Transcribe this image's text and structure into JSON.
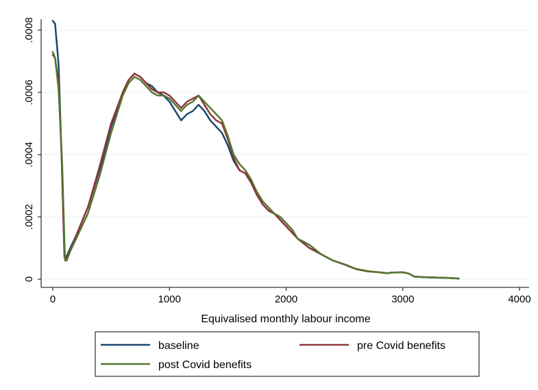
{
  "chart_data": {
    "type": "line",
    "title": "",
    "xlabel": "Equivalised monthly labour income",
    "ylabel": "",
    "xlim": [
      0,
      4000
    ],
    "ylim": [
      0,
      0.0008
    ],
    "xticks": [
      0,
      1000,
      2000,
      3000,
      4000
    ],
    "xtick_labels": [
      "0",
      "1000",
      "2000",
      "3000",
      "4000"
    ],
    "yticks": [
      0,
      0.0002,
      0.0004,
      0.0006,
      0.0008
    ],
    "ytick_labels": [
      "0",
      ".0002",
      ".0004",
      ".0006",
      ".0008"
    ],
    "grid": "horizontal",
    "legend_position": "bottom",
    "series": [
      {
        "name": "baseline",
        "color": "#1a476f",
        "points": [
          [
            0,
            0.00083
          ],
          [
            20,
            0.00082
          ],
          [
            50,
            0.00069
          ],
          [
            75,
            0.0004
          ],
          [
            100,
            8e-05
          ],
          [
            115,
            7e-05
          ],
          [
            150,
            0.0001
          ],
          [
            200,
            0.00014
          ],
          [
            300,
            0.00023
          ],
          [
            400,
            0.00035
          ],
          [
            500,
            0.00049
          ],
          [
            600,
            0.0006
          ],
          [
            650,
            0.00064
          ],
          [
            700,
            0.00066
          ],
          [
            750,
            0.00065
          ],
          [
            800,
            0.00063
          ],
          [
            850,
            0.00062
          ],
          [
            900,
            0.0006
          ],
          [
            950,
            0.00059
          ],
          [
            1000,
            0.00057
          ],
          [
            1050,
            0.00054
          ],
          [
            1100,
            0.00051
          ],
          [
            1150,
            0.00053
          ],
          [
            1200,
            0.00054
          ],
          [
            1250,
            0.00056
          ],
          [
            1300,
            0.00054
          ],
          [
            1350,
            0.00051
          ],
          [
            1400,
            0.00049
          ],
          [
            1450,
            0.00047
          ],
          [
            1500,
            0.00043
          ],
          [
            1550,
            0.00038
          ],
          [
            1600,
            0.00035
          ],
          [
            1650,
            0.00034
          ],
          [
            1700,
            0.00031
          ],
          [
            1750,
            0.00027
          ],
          [
            1800,
            0.00024
          ],
          [
            1850,
            0.00022
          ],
          [
            1900,
            0.00021
          ],
          [
            1950,
            0.00019
          ],
          [
            2000,
            0.00017
          ],
          [
            2050,
            0.00015
          ],
          [
            2100,
            0.00013
          ],
          [
            2200,
            0.0001
          ],
          [
            2300,
            8e-05
          ],
          [
            2400,
            6e-05
          ],
          [
            2500,
            4.7e-05
          ],
          [
            2600,
            3.2e-05
          ],
          [
            2700,
            2.5e-05
          ],
          [
            2800,
            2.2e-05
          ],
          [
            2870,
            1.9e-05
          ],
          [
            2900,
            2.1e-05
          ],
          [
            3000,
            2.2e-05
          ],
          [
            3050,
            1.8e-05
          ],
          [
            3100,
            8e-06
          ],
          [
            3200,
            6e-06
          ],
          [
            3300,
            5e-06
          ],
          [
            3400,
            4e-06
          ],
          [
            3480,
            2e-06
          ]
        ]
      },
      {
        "name": "pre Covid benefits",
        "color": "#90353b",
        "points": [
          [
            0,
            0.00072
          ],
          [
            20,
            0.00071
          ],
          [
            50,
            0.00063
          ],
          [
            75,
            0.0004
          ],
          [
            100,
            7e-05
          ],
          [
            115,
            6e-05
          ],
          [
            150,
            9e-05
          ],
          [
            200,
            0.00014
          ],
          [
            300,
            0.00023
          ],
          [
            400,
            0.00036
          ],
          [
            500,
            0.0005
          ],
          [
            600,
            0.0006
          ],
          [
            650,
            0.00064
          ],
          [
            700,
            0.00066
          ],
          [
            750,
            0.00065
          ],
          [
            800,
            0.00063
          ],
          [
            850,
            0.00061
          ],
          [
            900,
            0.0006
          ],
          [
            950,
            0.0006
          ],
          [
            1000,
            0.00059
          ],
          [
            1050,
            0.00057
          ],
          [
            1100,
            0.00055
          ],
          [
            1150,
            0.00057
          ],
          [
            1200,
            0.00058
          ],
          [
            1250,
            0.00059
          ],
          [
            1300,
            0.00056
          ],
          [
            1350,
            0.00053
          ],
          [
            1400,
            0.00051
          ],
          [
            1450,
            0.0005
          ],
          [
            1500,
            0.00045
          ],
          [
            1550,
            0.00039
          ],
          [
            1600,
            0.00035
          ],
          [
            1650,
            0.00034
          ],
          [
            1700,
            0.00031
          ],
          [
            1750,
            0.00027
          ],
          [
            1800,
            0.00024
          ],
          [
            1850,
            0.00022
          ],
          [
            1900,
            0.00021
          ],
          [
            1950,
            0.00019
          ],
          [
            2000,
            0.00017
          ],
          [
            2050,
            0.00015
          ],
          [
            2100,
            0.00013
          ],
          [
            2200,
            0.0001
          ],
          [
            2300,
            8e-05
          ],
          [
            2400,
            6e-05
          ],
          [
            2500,
            4.7e-05
          ],
          [
            2600,
            3.2e-05
          ],
          [
            2700,
            2.5e-05
          ],
          [
            2800,
            2.2e-05
          ],
          [
            2870,
            1.9e-05
          ],
          [
            2900,
            2.1e-05
          ],
          [
            3000,
            2.2e-05
          ],
          [
            3050,
            1.8e-05
          ],
          [
            3100,
            8e-06
          ],
          [
            3200,
            6e-06
          ],
          [
            3300,
            5e-06
          ],
          [
            3400,
            4e-06
          ],
          [
            3480,
            2e-06
          ]
        ]
      },
      {
        "name": "post Covid benefits",
        "color": "#55752f",
        "points": [
          [
            0,
            0.00073
          ],
          [
            20,
            0.00071
          ],
          [
            50,
            0.00061
          ],
          [
            80,
            0.00038
          ],
          [
            105,
            6e-05
          ],
          [
            120,
            6e-05
          ],
          [
            150,
            9e-05
          ],
          [
            200,
            0.00013
          ],
          [
            300,
            0.00021
          ],
          [
            400,
            0.00033
          ],
          [
            500,
            0.00047
          ],
          [
            600,
            0.00059
          ],
          [
            650,
            0.00063
          ],
          [
            700,
            0.00065
          ],
          [
            750,
            0.00064
          ],
          [
            800,
            0.00062
          ],
          [
            850,
            0.0006
          ],
          [
            900,
            0.00059
          ],
          [
            950,
            0.00059
          ],
          [
            1000,
            0.00058
          ],
          [
            1050,
            0.00056
          ],
          [
            1100,
            0.00054
          ],
          [
            1150,
            0.00056
          ],
          [
            1200,
            0.00057
          ],
          [
            1250,
            0.00059
          ],
          [
            1300,
            0.00057
          ],
          [
            1350,
            0.00055
          ],
          [
            1400,
            0.00053
          ],
          [
            1450,
            0.00051
          ],
          [
            1500,
            0.00046
          ],
          [
            1550,
            0.0004
          ],
          [
            1600,
            0.00037
          ],
          [
            1650,
            0.00035
          ],
          [
            1700,
            0.00032
          ],
          [
            1750,
            0.00028
          ],
          [
            1800,
            0.00025
          ],
          [
            1850,
            0.00023
          ],
          [
            1900,
            0.00021
          ],
          [
            1950,
            0.0002
          ],
          [
            2000,
            0.00018
          ],
          [
            2050,
            0.00016
          ],
          [
            2100,
            0.00013
          ],
          [
            2200,
            0.00011
          ],
          [
            2300,
            8e-05
          ],
          [
            2400,
            6e-05
          ],
          [
            2500,
            4.8e-05
          ],
          [
            2600,
            3.3e-05
          ],
          [
            2700,
            2.6e-05
          ],
          [
            2800,
            2.2e-05
          ],
          [
            2870,
            1.9e-05
          ],
          [
            2900,
            2.1e-05
          ],
          [
            3000,
            2.2e-05
          ],
          [
            3050,
            1.8e-05
          ],
          [
            3100,
            8e-06
          ],
          [
            3200,
            6e-06
          ],
          [
            3300,
            5e-06
          ],
          [
            3400,
            4e-06
          ],
          [
            3480,
            2e-06
          ]
        ]
      }
    ]
  },
  "colors": {
    "background": "#ffffff",
    "gridline": "#eaf2f3",
    "axis": "#000000"
  }
}
